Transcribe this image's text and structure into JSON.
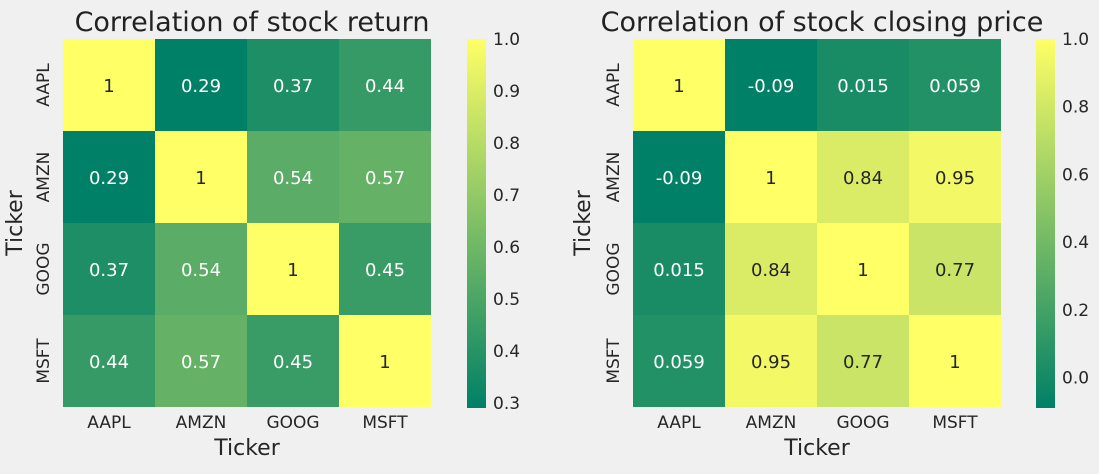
{
  "chart_data": [
    {
      "type": "heatmap",
      "title": "Correlation of stock return",
      "xlabel": "Ticker",
      "ylabel": "Ticker",
      "x_categories": [
        "AAPL",
        "AMZN",
        "GOOG",
        "MSFT"
      ],
      "y_categories": [
        "AAPL",
        "AMZN",
        "GOOG",
        "MSFT"
      ],
      "values": [
        [
          1,
          0.29,
          0.37,
          0.44
        ],
        [
          0.29,
          1,
          0.54,
          0.57
        ],
        [
          0.37,
          0.54,
          1,
          0.45
        ],
        [
          0.44,
          0.57,
          0.45,
          1
        ]
      ],
      "cell_labels": [
        [
          "1",
          "0.29",
          "0.37",
          "0.44"
        ],
        [
          "0.29",
          "1",
          "0.54",
          "0.57"
        ],
        [
          "0.37",
          "0.54",
          "1",
          "0.45"
        ],
        [
          "0.44",
          "0.57",
          "0.45",
          "1"
        ]
      ],
      "colormap": "summer",
      "color_range": [
        0.29,
        1.0
      ],
      "colorbar_ticks": [
        "0.3",
        "0.4",
        "0.5",
        "0.6",
        "0.7",
        "0.8",
        "0.9",
        "1.0"
      ],
      "colorbar_tick_values": [
        0.3,
        0.4,
        0.5,
        0.6,
        0.7,
        0.8,
        0.9,
        1.0
      ]
    },
    {
      "type": "heatmap",
      "title": "Correlation of stock closing price",
      "xlabel": "Ticker",
      "ylabel": "Ticker",
      "x_categories": [
        "AAPL",
        "AMZN",
        "GOOG",
        "MSFT"
      ],
      "y_categories": [
        "AAPL",
        "AMZN",
        "GOOG",
        "MSFT"
      ],
      "values": [
        [
          1,
          -0.09,
          0.015,
          0.059
        ],
        [
          -0.09,
          1,
          0.84,
          0.95
        ],
        [
          0.015,
          0.84,
          1,
          0.77
        ],
        [
          0.059,
          0.95,
          0.77,
          1
        ]
      ],
      "cell_labels": [
        [
          "1",
          "-0.09",
          "0.015",
          "0.059"
        ],
        [
          "-0.09",
          "1",
          "0.84",
          "0.95"
        ],
        [
          "0.015",
          "0.84",
          "1",
          "0.77"
        ],
        [
          "0.059",
          "0.95",
          "0.77",
          "1"
        ]
      ],
      "colormap": "summer",
      "color_range": [
        -0.09,
        1.0
      ],
      "colorbar_ticks": [
        "0.0",
        "0.2",
        "0.4",
        "0.6",
        "0.8",
        "1.0"
      ],
      "colorbar_tick_values": [
        0.0,
        0.2,
        0.4,
        0.6,
        0.8,
        1.0
      ]
    }
  ]
}
